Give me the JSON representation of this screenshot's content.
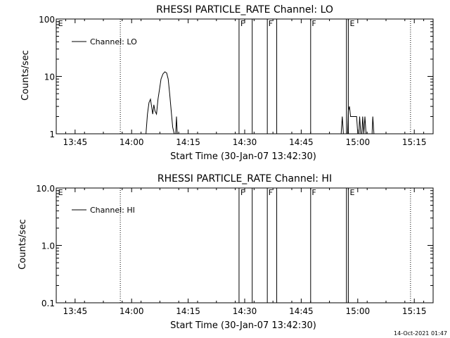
{
  "timestamp": "14-Oct-2021 01:47",
  "chart_data": [
    {
      "type": "line",
      "title": "RHESSI PARTICLE_RATE Channel: LO",
      "xlabel": "Start Time (30-Jan-07 13:42:30)",
      "ylabel": "Counts/sec",
      "yscale": "log",
      "ylim": [
        1,
        100
      ],
      "ytick_values": [
        1,
        10,
        100
      ],
      "ytick_labels": [
        "1",
        "10",
        "100"
      ],
      "xlim_min": [
        -2.5,
        97.5
      ],
      "xtick_min": [
        2.5,
        17.5,
        32.5,
        47.5,
        62.5,
        77.5,
        92.5
      ],
      "xtick_labels": [
        "13:45",
        "14:00",
        "14:15",
        "14:30",
        "14:45",
        "15:00",
        "15:15"
      ],
      "dotted_lines_min": [
        14.5,
        91.5
      ],
      "flag_lines_min": [
        46.0,
        49.5,
        53.5,
        56.0,
        65.0,
        74.5,
        75.0
      ],
      "flags": [
        {
          "label": "E",
          "at_min": -2.2
        },
        {
          "label": "F",
          "at_min": 46.2
        },
        {
          "label": "F",
          "at_min": 53.6
        },
        {
          "label": "F",
          "at_min": 65.1
        },
        {
          "label": "E",
          "at_min": 75.2
        }
      ],
      "legend": {
        "label": "Channel: LO",
        "position": "top-left"
      },
      "series": [
        {
          "name": "Channel: LO",
          "segments": [
            [
              [
                21.3,
                1
              ],
              [
                21.7,
                2.2
              ],
              [
                22.1,
                3.5
              ],
              [
                22.5,
                4
              ],
              [
                22.8,
                3
              ],
              [
                23.1,
                2.2
              ],
              [
                23.4,
                3.2
              ],
              [
                23.7,
                2.5
              ],
              [
                24.1,
                2.2
              ],
              [
                24.5,
                4
              ],
              [
                24.9,
                6
              ],
              [
                25.3,
                9
              ],
              [
                25.8,
                11
              ],
              [
                26.3,
                12
              ],
              [
                26.8,
                11.5
              ],
              [
                27.2,
                9
              ],
              [
                27.6,
                5
              ],
              [
                28.0,
                2.5
              ],
              [
                28.4,
                1.3
              ],
              [
                28.8,
                1
              ]
            ],
            [
              [
                29.2,
                1
              ],
              [
                29.4,
                2
              ],
              [
                29.6,
                1
              ]
            ],
            [
              [
                73.1,
                1
              ],
              [
                73.4,
                2
              ],
              [
                73.7,
                1
              ]
            ],
            [
              [
                74.8,
                1
              ],
              [
                75.0,
                2.5
              ],
              [
                75.3,
                3
              ],
              [
                75.6,
                2
              ],
              [
                76.0,
                2
              ],
              [
                77.2,
                2
              ],
              [
                77.5,
                1
              ]
            ],
            [
              [
                77.8,
                1
              ],
              [
                78.0,
                2
              ],
              [
                78.3,
                1
              ]
            ],
            [
              [
                78.6,
                1
              ],
              [
                78.8,
                2
              ],
              [
                79.1,
                1
              ],
              [
                79.4,
                2
              ],
              [
                79.7,
                1
              ]
            ],
            [
              [
                81.3,
                1
              ],
              [
                81.5,
                2
              ],
              [
                81.8,
                1
              ]
            ]
          ]
        }
      ]
    },
    {
      "type": "line",
      "title": "RHESSI PARTICLE_RATE Channel: HI",
      "xlabel": "Start Time (30-Jan-07 13:42:30)",
      "ylabel": "Counts/sec",
      "yscale": "log",
      "ylim": [
        0.1,
        10
      ],
      "ytick_values": [
        0.1,
        1,
        10
      ],
      "ytick_labels": [
        "0.1",
        "1.0",
        "10.0"
      ],
      "xlim_min": [
        -2.5,
        97.5
      ],
      "xtick_min": [
        2.5,
        17.5,
        32.5,
        47.5,
        62.5,
        77.5,
        92.5
      ],
      "xtick_labels": [
        "13:45",
        "14:00",
        "14:15",
        "14:30",
        "14:45",
        "15:00",
        "15:15"
      ],
      "dotted_lines_min": [
        14.5,
        91.5
      ],
      "flag_lines_min": [
        46.0,
        49.5,
        53.5,
        56.0,
        65.0,
        74.5,
        75.0
      ],
      "flags": [
        {
          "label": "E",
          "at_min": -2.2
        },
        {
          "label": "F",
          "at_min": 46.2
        },
        {
          "label": "F",
          "at_min": 53.6
        },
        {
          "label": "F",
          "at_min": 65.1
        },
        {
          "label": "E",
          "at_min": 75.2
        }
      ],
      "legend": {
        "label": "Channel: HI",
        "position": "top-left"
      },
      "series": [
        {
          "name": "Channel: HI",
          "segments": []
        }
      ]
    }
  ]
}
